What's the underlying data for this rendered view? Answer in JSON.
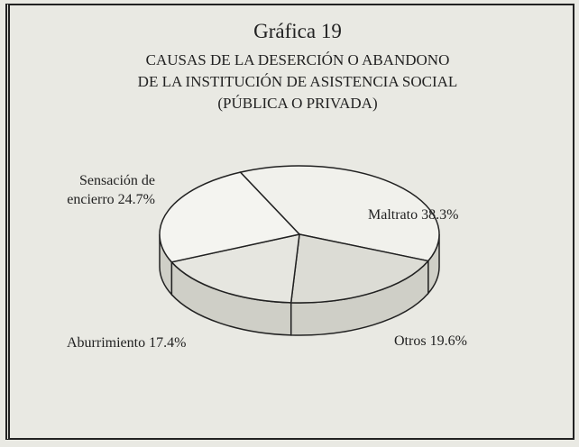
{
  "chart_data": {
    "type": "pie3d",
    "title": "Gráfica 19",
    "subtitle": [
      "CAUSAS DE LA DESERCIÓN O ABANDONO",
      "DE LA INSTITUCIÓN DE ASISTENCIA SOCIAL",
      "(PÚBLICA O PRIVADA)"
    ],
    "categories": [
      "Maltrato",
      "Otros",
      "Aburrimiento",
      "Sensación de encierro"
    ],
    "values": [
      38.3,
      19.6,
      17.4,
      24.7
    ],
    "value_labels": [
      "38.3%",
      "19.6%",
      "17.4%",
      "24.7%"
    ],
    "colors": [
      "#f1f1ec",
      "#dcdcd5",
      "#e6e6e0",
      "#f4f4f0"
    ]
  }
}
